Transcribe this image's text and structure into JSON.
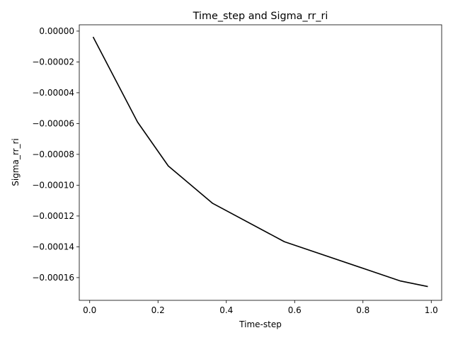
{
  "chart_data": {
    "type": "line",
    "title": "Time_step and Sigma_rr_ri",
    "xlabel": "Time-step",
    "ylabel": "Sigma_rr_ri",
    "xlim": [
      -0.0305,
      1.0305
    ],
    "ylim": [
      -0.00017475,
      4.1e-06
    ],
    "xticks": [
      0.0,
      0.2,
      0.4,
      0.6,
      0.8,
      1.0
    ],
    "xtick_labels": [
      "0.0",
      "0.2",
      "0.4",
      "0.6",
      "0.8",
      "1.0"
    ],
    "yticks": [
      0.0,
      -2e-05,
      -4e-05,
      -6e-05,
      -8e-05,
      -0.0001,
      -0.00012,
      -0.00014,
      -0.00016
    ],
    "ytick_labels": [
      "0.00000",
      "−0.00002",
      "−0.00004",
      "−0.00006",
      "−0.00008",
      "−0.00010",
      "−0.00012",
      "−0.00014",
      "−0.00016"
    ],
    "grid": false,
    "legend": "none",
    "series": [
      {
        "color": "#000000",
        "x": [
          0.01,
          0.14,
          0.23,
          0.36,
          0.57,
          0.91,
          0.99
        ],
        "y": [
          -3.8e-06,
          -5.9e-05,
          -8.75e-05,
          -0.0001118,
          -0.0001367,
          -0.0001622,
          -0.0001658
        ]
      }
    ]
  }
}
